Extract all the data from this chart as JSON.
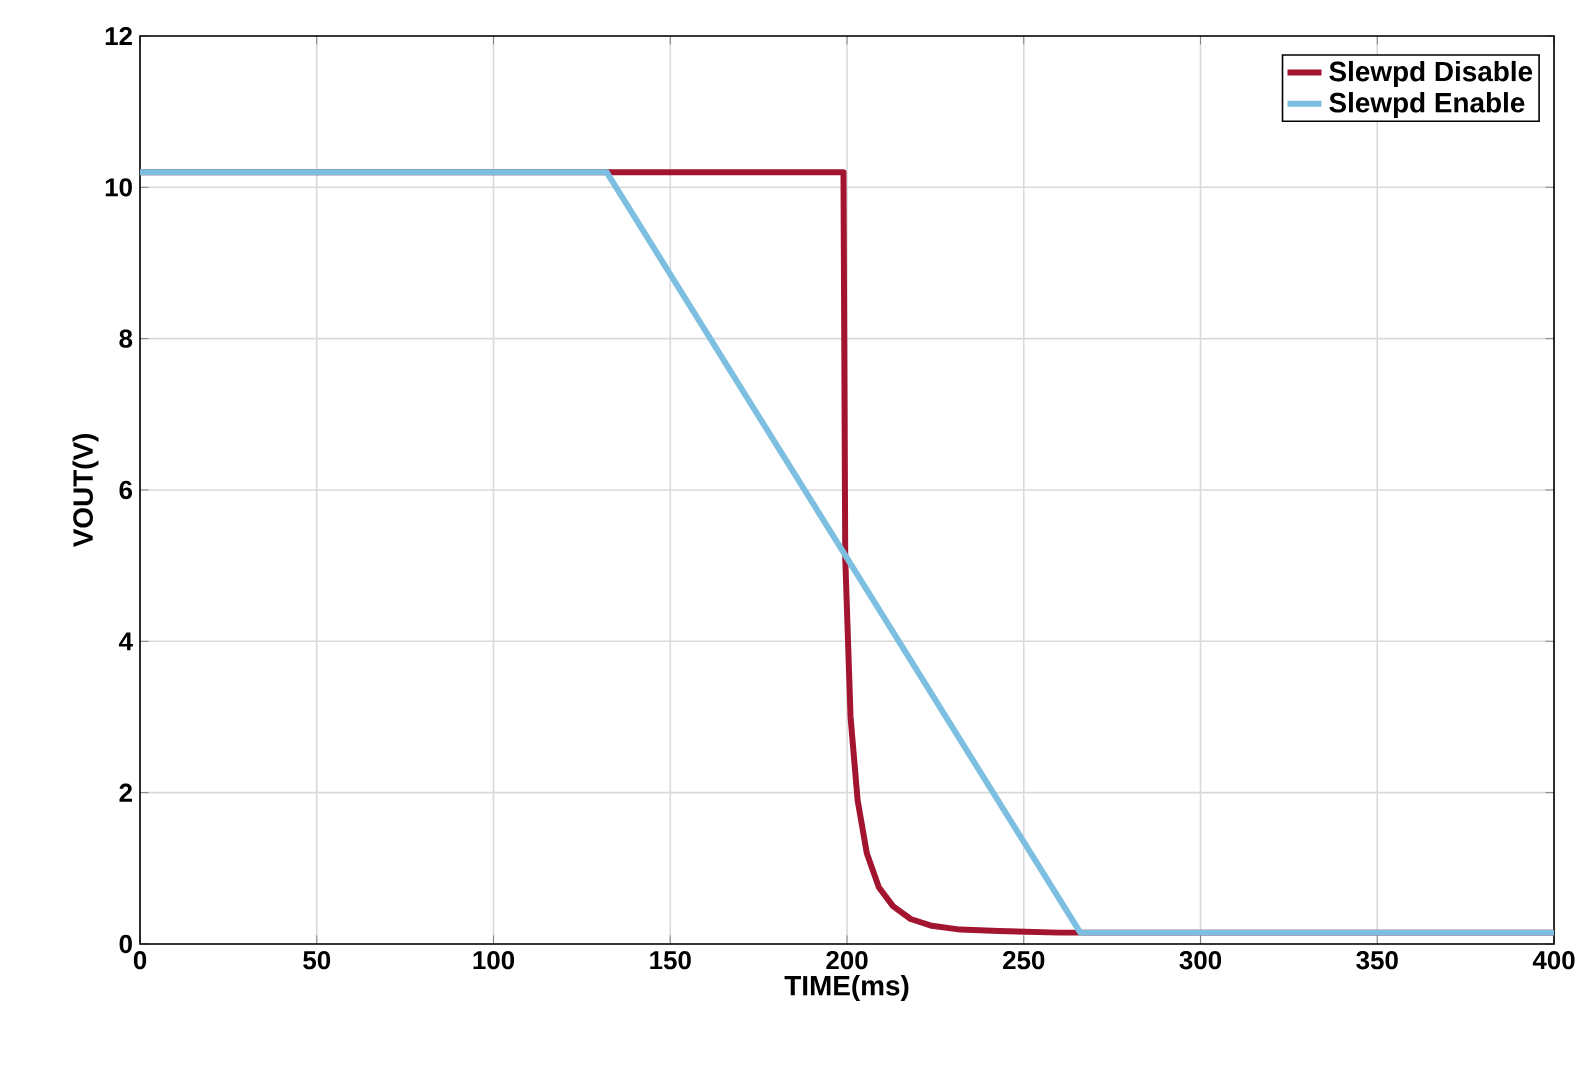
{
  "chart_data": {
    "type": "line",
    "xlabel": "TIME(ms)",
    "ylabel": "VOUT(V)",
    "xlim": [
      0,
      400
    ],
    "ylim": [
      0,
      12
    ],
    "xticks": [
      0,
      50,
      100,
      150,
      200,
      250,
      300,
      350,
      400
    ],
    "yticks": [
      0,
      2,
      4,
      6,
      8,
      10,
      12
    ],
    "grid": true,
    "legend": "top right",
    "line_style": "solid",
    "marker": "none",
    "series": [
      {
        "name": "Slewpd Disable",
        "color": "#a2142f",
        "x": [
          0,
          199,
          199.5,
          201,
          203,
          205.6,
          209,
          213,
          218,
          224,
          232,
          243,
          260,
          300,
          400
        ],
        "values": [
          10.2,
          10.2,
          5.1,
          3.0,
          1.9,
          1.2,
          0.75,
          0.5,
          0.33,
          0.24,
          0.19,
          0.17,
          0.15,
          0.15,
          0.15
        ]
      },
      {
        "name": "Slewpd Enable",
        "color": "#7dbfe0",
        "x": [
          0,
          132,
          266,
          400
        ],
        "values": [
          10.2,
          10.2,
          0.15,
          0.15
        ]
      }
    ]
  }
}
